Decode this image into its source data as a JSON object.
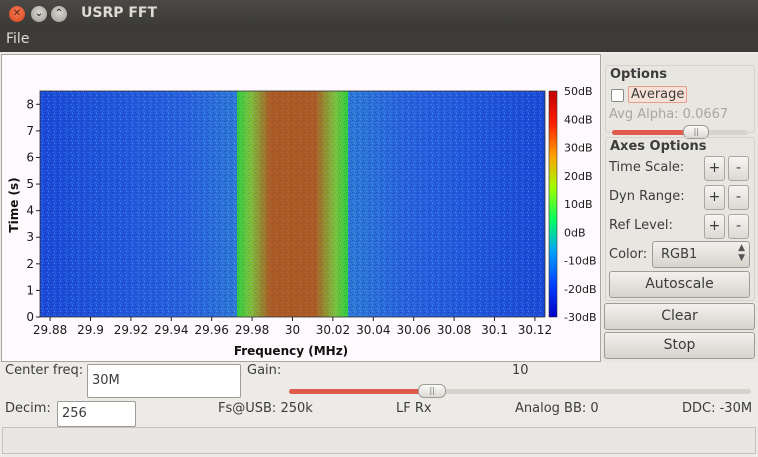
{
  "window": {
    "title": "USRP FFT"
  },
  "menu": {
    "file": "File"
  },
  "options": {
    "title": "Options",
    "average_label": "Average",
    "average_checked": false,
    "avg_alpha_label": "Avg Alpha: 0.0667",
    "avg_alpha_slider_fraction": 0.62
  },
  "axes_options": {
    "title": "Axes Options",
    "time_scale_label": "Time Scale:",
    "dyn_range_label": "Dyn Range:",
    "ref_level_label": "Ref Level:",
    "plus": "+",
    "minus": "-",
    "color_label": "Color:",
    "color_value": "RGB1",
    "autoscale_label": "Autoscale"
  },
  "buttons": {
    "clear": "Clear",
    "stop": "Stop"
  },
  "controls": {
    "center_freq_label": "Center freq:",
    "center_freq_value": "30M",
    "gain_label": "Gain:",
    "gain_value": "10",
    "gain_slider_fraction": 0.31,
    "decim_label": "Decim:",
    "decim_value": "256",
    "fs_usb": "Fs@USB: 250k",
    "lf_rx": "LF Rx",
    "analog_bb": "Analog BB: 0",
    "ddc": "DDC: -30M"
  },
  "chart_data": {
    "type": "heatmap",
    "xlabel": "Frequency (MHz)",
    "ylabel": "Time (s)",
    "x_ticks": [
      "29.88",
      "29.9",
      "29.92",
      "29.94",
      "29.96",
      "29.98",
      "30",
      "30.02",
      "30.04",
      "30.06",
      "30.08",
      "30.1",
      "30.12"
    ],
    "y_ticks": [
      "0",
      "1",
      "2",
      "3",
      "4",
      "5",
      "6",
      "7",
      "8"
    ],
    "xlim": [
      29.875,
      30.125
    ],
    "ylim": [
      0,
      8.5
    ],
    "signal_band_mhz": [
      29.9725,
      30.0275
    ],
    "colorbar_ticks": [
      "50dB",
      "40dB",
      "30dB",
      "20dB",
      "10dB",
      "0dB",
      "-10dB",
      "-20dB",
      "-30dB"
    ],
    "colorbar_range": [
      -30,
      50
    ],
    "colormap": [
      "#0000c8",
      "#0040ff",
      "#00a0ff",
      "#00ff60",
      "#a0ff00",
      "#ffa000",
      "#ff2000",
      "#c00000"
    ]
  },
  "colors": {
    "accent": "#e95420",
    "slider_fill": "#e05a4e",
    "heat_background": "#1f4fd8",
    "signal_center": "#b05a20",
    "signal_edge": "#2fd03a"
  }
}
